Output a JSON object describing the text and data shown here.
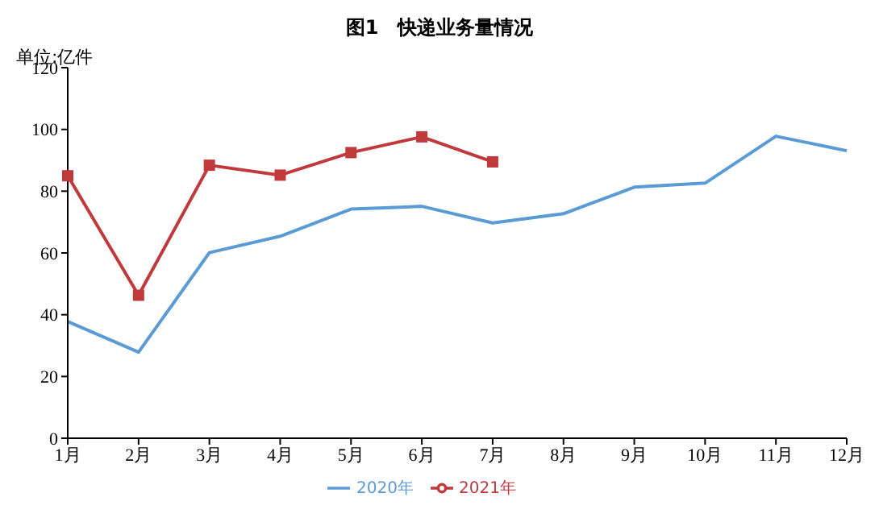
{
  "chart_data": {
    "type": "line",
    "title": "图1　快递业务量情况",
    "ylabel": "单位:亿件",
    "categories": [
      "1月",
      "2月",
      "3月",
      "4月",
      "5月",
      "6月",
      "7月",
      "8月",
      "9月",
      "10月",
      "11月",
      "12月"
    ],
    "series": [
      {
        "name": "2020年",
        "color": "#5b9bd5",
        "marker": "none",
        "values": [
          37.8,
          27.9,
          60.1,
          65.4,
          74.2,
          75.1,
          69.7,
          72.7,
          81.3,
          82.6,
          97.8,
          93.1
        ]
      },
      {
        "name": "2021年",
        "color": "#c0393b",
        "marker": "square",
        "values": [
          85,
          46.3,
          88.4,
          85.2,
          92.5,
          97.6,
          89.5,
          null,
          null,
          null,
          null,
          null
        ]
      }
    ],
    "ylim": [
      0,
      120
    ],
    "yticks": [
      0,
      20,
      40,
      60,
      80,
      100,
      120
    ],
    "grid": false,
    "legend": "bottom"
  }
}
